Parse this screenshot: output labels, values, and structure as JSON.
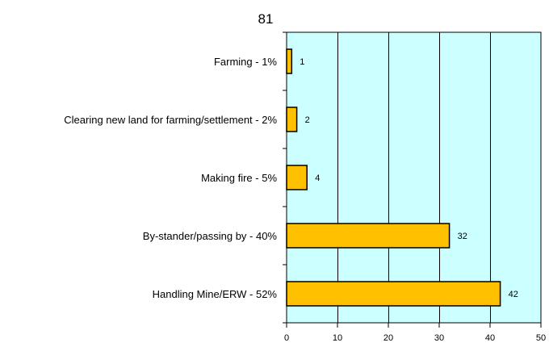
{
  "chart_data": {
    "type": "bar",
    "orientation": "horizontal",
    "title": "81",
    "xlabel": "",
    "ylabel": "",
    "categories": [
      "Farming - 1%",
      "Clearing new land for farming/settlement - 2%",
      "Making fire - 5%",
      "By-stander/passing by - 40%",
      "Handling Mine/ERW - 52%"
    ],
    "values": [
      1,
      2,
      4,
      32,
      42
    ],
    "data_labels": [
      "1",
      "2",
      "4",
      "32",
      "42"
    ],
    "xlim": [
      0,
      50
    ],
    "xticks": [
      0,
      10,
      20,
      30,
      40,
      50
    ],
    "xtick_labels": [
      "0",
      "10",
      "20",
      "30",
      "40",
      "50"
    ],
    "grid": true,
    "legend": false,
    "colors": {
      "plot_background": "#ccffff",
      "bar_fill": "#ffc000",
      "bar_stroke": "#000000",
      "grid": "#000000"
    }
  }
}
